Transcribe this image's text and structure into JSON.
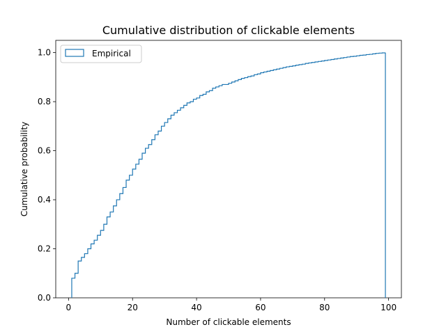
{
  "chart_data": {
    "type": "line",
    "title": "Cumulative distribution of clickable elements",
    "xlabel": "Number of clickable elements",
    "ylabel": "Cumulative probability",
    "xlim": [
      -4,
      104
    ],
    "ylim": [
      0,
      1.05
    ],
    "xticks": [
      0,
      20,
      40,
      60,
      80,
      100
    ],
    "yticks": [
      0.0,
      0.2,
      0.4,
      0.6,
      0.8,
      1.0
    ],
    "xtick_labels": [
      "0",
      "20",
      "40",
      "60",
      "80",
      "100"
    ],
    "ytick_labels": [
      "0.0",
      "0.2",
      "0.4",
      "0.6",
      "0.8",
      "1.0"
    ],
    "legend": {
      "entries": [
        "Empirical"
      ],
      "placement": "top-left"
    },
    "grid": false,
    "color": "#1f77b4",
    "series": [
      {
        "name": "Empirical",
        "style": "step-histogram",
        "x": [
          1,
          2,
          3,
          4,
          5,
          6,
          7,
          8,
          9,
          10,
          11,
          12,
          13,
          14,
          15,
          16,
          17,
          18,
          19,
          20,
          21,
          22,
          23,
          24,
          25,
          26,
          27,
          28,
          29,
          30,
          31,
          32,
          33,
          34,
          35,
          36,
          37,
          38,
          39,
          40,
          41,
          42,
          43,
          44,
          45,
          46,
          47,
          48,
          49,
          50,
          51,
          52,
          53,
          54,
          55,
          56,
          57,
          58,
          59,
          60,
          61,
          62,
          63,
          64,
          65,
          66,
          67,
          68,
          69,
          70,
          71,
          72,
          73,
          74,
          75,
          76,
          77,
          78,
          79,
          80,
          81,
          82,
          83,
          84,
          85,
          86,
          87,
          88,
          89,
          90,
          91,
          92,
          93,
          94,
          95,
          96,
          97,
          98,
          99
        ],
        "y": [
          0.08,
          0.1,
          0.15,
          0.165,
          0.18,
          0.2,
          0.22,
          0.235,
          0.255,
          0.275,
          0.3,
          0.33,
          0.35,
          0.375,
          0.4,
          0.425,
          0.45,
          0.48,
          0.5,
          0.525,
          0.545,
          0.565,
          0.59,
          0.61,
          0.625,
          0.645,
          0.665,
          0.68,
          0.7,
          0.715,
          0.73,
          0.745,
          0.755,
          0.765,
          0.775,
          0.785,
          0.795,
          0.8,
          0.81,
          0.815,
          0.825,
          0.83,
          0.84,
          0.845,
          0.855,
          0.86,
          0.865,
          0.87,
          0.87,
          0.875,
          0.88,
          0.885,
          0.89,
          0.895,
          0.898,
          0.902,
          0.905,
          0.91,
          0.913,
          0.918,
          0.921,
          0.924,
          0.927,
          0.93,
          0.933,
          0.936,
          0.939,
          0.942,
          0.944,
          0.946,
          0.949,
          0.951,
          0.953,
          0.956,
          0.958,
          0.96,
          0.962,
          0.964,
          0.966,
          0.968,
          0.97,
          0.972,
          0.974,
          0.976,
          0.978,
          0.98,
          0.982,
          0.984,
          0.985,
          0.987,
          0.989,
          0.99,
          0.992,
          0.993,
          0.995,
          0.997,
          0.998,
          0.999,
          1.0
        ]
      }
    ]
  }
}
